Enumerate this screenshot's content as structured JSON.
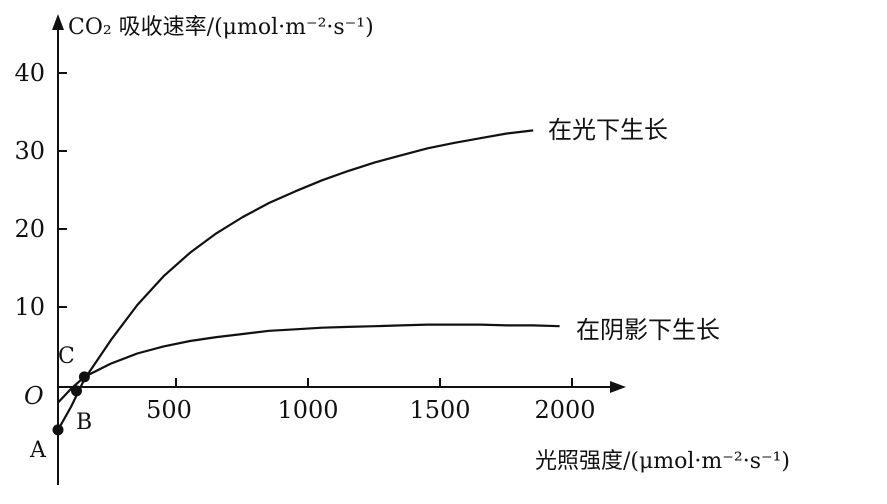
{
  "chart_data": {
    "type": "line",
    "ylabel": "CO₂ 吸收速率/(μmol·m⁻²·s⁻¹)",
    "xlabel": "光照强度/(μmol·m⁻²·s⁻¹)",
    "origin_label": "O",
    "x_ticks": [
      "500",
      "1000",
      "1500",
      "2000"
    ],
    "y_ticks": [
      "10",
      "20",
      "30",
      "40"
    ],
    "xlim": [
      0,
      2100
    ],
    "ylim": [
      -6,
      43
    ],
    "series": [
      {
        "name": "在光下生长",
        "x": [
          0,
          50,
          100,
          200,
          300,
          400,
          500,
          600,
          700,
          800,
          900,
          1000,
          1100,
          1200,
          1300,
          1400,
          1500,
          1600,
          1700,
          1800
        ],
        "y": [
          -5.5,
          -2.5,
          1.0,
          6.0,
          10.5,
          14.2,
          17.2,
          19.7,
          21.8,
          23.6,
          25.1,
          26.5,
          27.7,
          28.8,
          29.7,
          30.6,
          31.3,
          31.9,
          32.5,
          32.9
        ]
      },
      {
        "name": "在阴影下生长",
        "x": [
          0,
          50,
          100,
          200,
          300,
          400,
          500,
          600,
          700,
          800,
          900,
          1000,
          1100,
          1200,
          1300,
          1400,
          1500,
          1600,
          1700,
          1800,
          1900
        ],
        "y": [
          -2.0,
          -0.2,
          1.3,
          3.0,
          4.3,
          5.2,
          5.9,
          6.4,
          6.8,
          7.2,
          7.4,
          7.6,
          7.7,
          7.8,
          7.9,
          8.0,
          8.0,
          8.0,
          7.9,
          7.9,
          7.8
        ]
      }
    ],
    "points": [
      {
        "label": "A",
        "x": 0,
        "y": -5.5
      },
      {
        "label": "B",
        "x": 70,
        "y": -0.5
      },
      {
        "label": "C",
        "x": 100,
        "y": 1.3
      }
    ]
  }
}
